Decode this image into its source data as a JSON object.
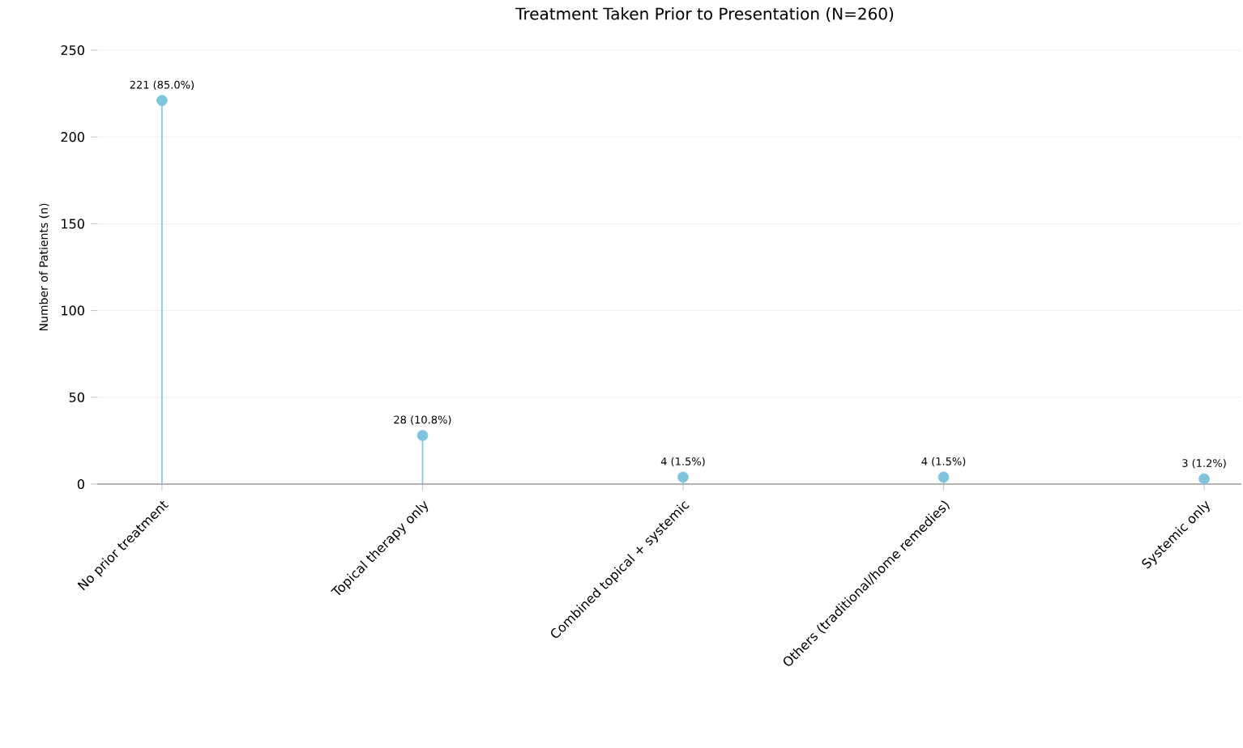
{
  "chart_data": {
    "type": "lollipop",
    "title": "Treatment Taken Prior to Presentation (N=260)",
    "ylabel": "Number of Patients (n)",
    "categories": [
      "No prior treatment",
      "Topical therapy only",
      "Combined topical + systemic",
      "Others (traditional/home remedies)",
      "Systemic only"
    ],
    "values": [
      221,
      28,
      4,
      4,
      3
    ],
    "value_labels": [
      "221 (85.0%)",
      "28 (10.8%)",
      "4 (1.5%)",
      "4 (1.5%)",
      "3 (1.2%)"
    ],
    "color": "#7ec4de",
    "ylim": [
      0,
      250
    ],
    "yticks": [
      0,
      50,
      100,
      150,
      200,
      250
    ],
    "grid": "y",
    "marker": "circle"
  }
}
